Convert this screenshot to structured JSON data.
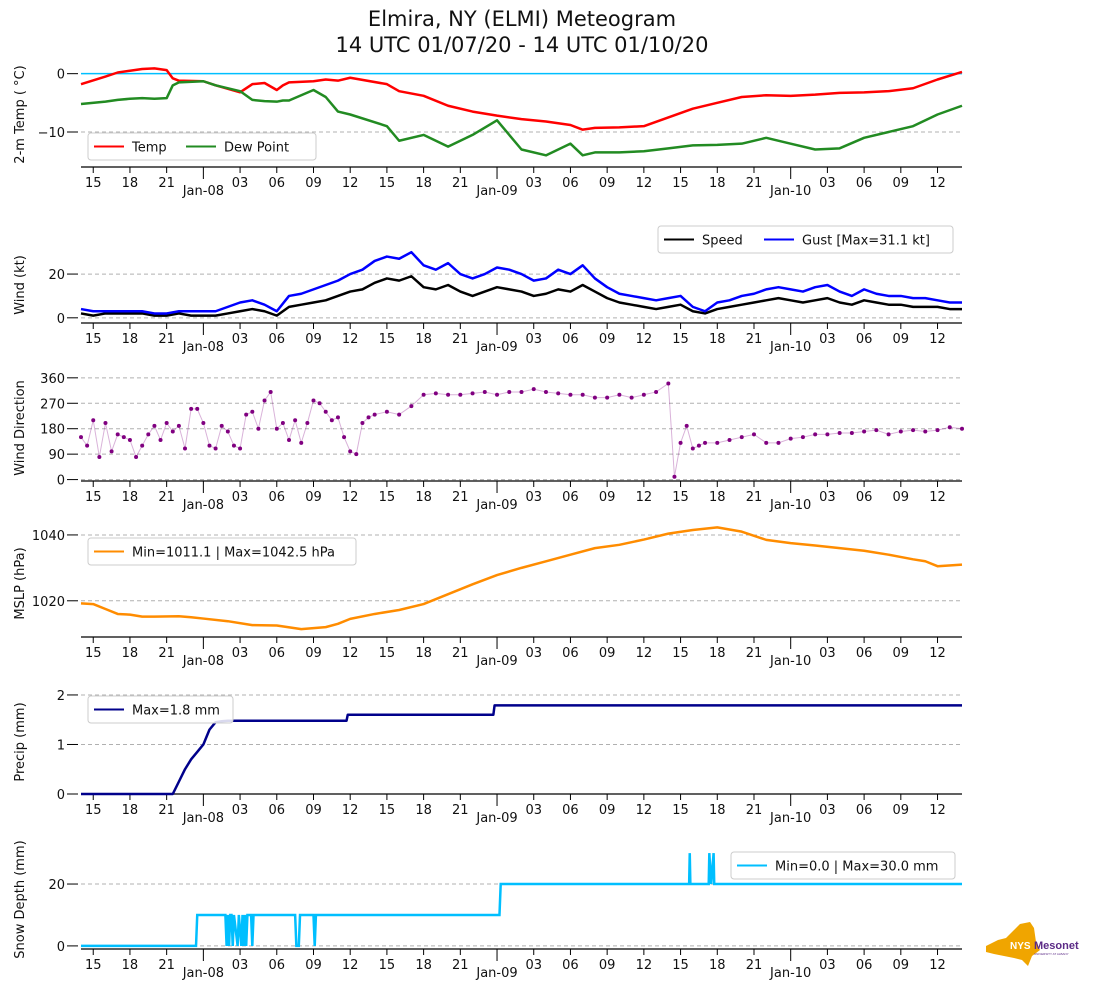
{
  "title": {
    "line1": "Elmira, NY (ELMI) Meteogram",
    "line2": "14 UTC 01/07/20 - 14 UTC 01/10/20"
  },
  "logo": {
    "text_a": "NYS",
    "text_b": "Mesonet",
    "text_c": "UNIVERSITY AT ALBANY",
    "color_state": "#f0a500",
    "color_text": "#5b2a86"
  },
  "chart_data": [
    {
      "id": "temp",
      "type": "line",
      "ylabel": "2-m Temp ($^\\circ$C)",
      "ylabel_display": "2-m Temp ( °C)",
      "xlabel": "",
      "x_hours_range": [
        0,
        72
      ],
      "ylim": [
        -16,
        2
      ],
      "yticks": [
        0,
        -10
      ],
      "ytick_labels": [
        "0",
        "−10"
      ],
      "grid_y": [
        -10
      ],
      "reference_line": {
        "y": 0,
        "color": "#00bfff"
      },
      "legend": {
        "placement": "lower-left",
        "ncol": 2,
        "entries": [
          "Temp",
          "Dew Point"
        ]
      },
      "x_hours": [
        0,
        2,
        3,
        4,
        5,
        6,
        7,
        7.5,
        8,
        10,
        11,
        13,
        14,
        15,
        16,
        16.5,
        17,
        19,
        20,
        21,
        22,
        25,
        26,
        28,
        30,
        32,
        34,
        36,
        38,
        40,
        41,
        42,
        44,
        46,
        48,
        50,
        52,
        54,
        56,
        58,
        60,
        62,
        64,
        66,
        68,
        70,
        72
      ],
      "series": [
        {
          "name": "Temp",
          "color": "#ff0000",
          "values": [
            -1.8,
            -0.5,
            0.2,
            0.5,
            0.8,
            0.9,
            0.6,
            -0.8,
            -1.2,
            -1.3,
            -2.0,
            -3.2,
            -1.8,
            -1.6,
            -2.8,
            -2.0,
            -1.5,
            -1.3,
            -1.0,
            -1.2,
            -0.7,
            -1.8,
            -3.0,
            -3.8,
            -5.5,
            -6.5,
            -7.2,
            -7.8,
            -8.2,
            -8.8,
            -9.6,
            -9.3,
            -9.2,
            -9.0,
            -7.5,
            -6.0,
            -5.0,
            -4.0,
            -3.7,
            -3.8,
            -3.6,
            -3.3,
            -3.2,
            -3.0,
            -2.5,
            -1.0,
            0.3
          ]
        },
        {
          "name": "Dew Point",
          "color": "#228b22",
          "values": [
            -5.2,
            -4.8,
            -4.5,
            -4.3,
            -4.2,
            -4.3,
            -4.2,
            -2.0,
            -1.5,
            -1.3,
            -2.0,
            -3.0,
            -4.5,
            -4.7,
            -4.8,
            -4.6,
            -4.6,
            -2.8,
            -4.0,
            -6.5,
            -7.0,
            -9.0,
            -11.5,
            -10.5,
            -12.5,
            -10.5,
            -8.0,
            -13.0,
            -14.0,
            -12.0,
            -14.0,
            -13.5,
            -13.5,
            -13.3,
            -12.8,
            -12.3,
            -12.2,
            -12.0,
            -11.0,
            -12.0,
            -13.0,
            -12.8,
            -11.0,
            -10.0,
            -9.0,
            -7.0,
            -5.5
          ]
        }
      ]
    },
    {
      "id": "wind",
      "type": "line",
      "ylabel": "Wind (kt)",
      "xlabel": "",
      "x_hours_range": [
        0,
        72
      ],
      "ylim": [
        -1,
        31
      ],
      "yticks": [
        0,
        20
      ],
      "ytick_labels": [
        "0",
        "20"
      ],
      "grid_y": [
        0,
        20
      ],
      "legend": {
        "placement": "upper-right",
        "ncol": 2,
        "entries": [
          "Speed",
          "Gust [Max=31.1 kt]"
        ]
      },
      "x_hours": [
        0,
        1,
        2,
        3,
        4,
        5,
        6,
        7,
        8,
        9,
        10,
        11,
        12,
        13,
        14,
        15,
        16,
        17,
        18,
        19,
        20,
        21,
        22,
        23,
        24,
        25,
        26,
        27,
        28,
        29,
        30,
        31,
        32,
        33,
        34,
        35,
        36,
        37,
        38,
        39,
        40,
        41,
        42,
        43,
        44,
        45,
        46,
        47,
        48,
        49,
        50,
        51,
        52,
        53,
        54,
        55,
        56,
        57,
        58,
        59,
        60,
        61,
        62,
        63,
        64,
        65,
        66,
        67,
        68,
        69,
        70,
        71,
        72
      ],
      "series": [
        {
          "name": "Speed",
          "color": "#000000",
          "values": [
            2,
            1,
            2,
            2,
            2,
            2,
            1,
            1,
            2,
            1,
            1,
            1,
            2,
            3,
            4,
            3,
            1,
            5,
            6,
            7,
            8,
            10,
            12,
            13,
            16,
            18,
            17,
            19,
            14,
            13,
            15,
            12,
            10,
            12,
            14,
            13,
            12,
            10,
            11,
            13,
            12,
            15,
            12,
            9,
            7,
            6,
            5,
            4,
            5,
            6,
            3,
            2,
            4,
            5,
            6,
            7,
            8,
            9,
            8,
            7,
            8,
            9,
            7,
            6,
            8,
            7,
            6,
            6,
            5,
            5,
            5,
            4,
            4
          ]
        },
        {
          "name": "Gust",
          "color": "#0000ff",
          "values": [
            4,
            3,
            3,
            3,
            3,
            3,
            2,
            2,
            3,
            3,
            3,
            3,
            5,
            7,
            8,
            6,
            3,
            10,
            11,
            13,
            15,
            17,
            20,
            22,
            26,
            28,
            27,
            30,
            24,
            22,
            25,
            20,
            18,
            20,
            23,
            22,
            20,
            17,
            18,
            22,
            20,
            24,
            18,
            14,
            11,
            10,
            9,
            8,
            9,
            10,
            5,
            3,
            7,
            8,
            10,
            11,
            13,
            14,
            13,
            12,
            14,
            15,
            12,
            10,
            13,
            11,
            10,
            10,
            9,
            9,
            8,
            7,
            7
          ]
        }
      ]
    },
    {
      "id": "wdir",
      "type": "scatter",
      "ylabel": "Wind Direction",
      "xlabel": "",
      "x_hours_range": [
        0,
        72
      ],
      "ylim": [
        -5,
        370
      ],
      "yticks": [
        0,
        90,
        180,
        270,
        360
      ],
      "ytick_labels": [
        "0",
        "90",
        "180",
        "270",
        "360"
      ],
      "grid_y": [
        0,
        90,
        180,
        270,
        360
      ],
      "color": "#800080",
      "x_hours": [
        0,
        0.5,
        1,
        1.5,
        2,
        2.5,
        3,
        3.5,
        4,
        4.5,
        5,
        5.5,
        6,
        6.5,
        7,
        7.5,
        8,
        8.5,
        9,
        9.5,
        10,
        10.5,
        11,
        11.5,
        12,
        12.5,
        13,
        13.5,
        14,
        14.5,
        15,
        15.5,
        16,
        16.5,
        17,
        17.5,
        18,
        18.5,
        19,
        19.5,
        20,
        20.5,
        21,
        21.5,
        22,
        22.5,
        23,
        23.5,
        24,
        25,
        26,
        27,
        28,
        29,
        30,
        31,
        32,
        33,
        34,
        35,
        36,
        37,
        38,
        39,
        40,
        41,
        42,
        43,
        44,
        45,
        46,
        47,
        48,
        48.5,
        49,
        49.5,
        50,
        50.5,
        51,
        52,
        53,
        54,
        55,
        56,
        57,
        58,
        59,
        60,
        61,
        62,
        63,
        64,
        65,
        66,
        67,
        68,
        69,
        70,
        71,
        72
      ],
      "values": [
        150,
        120,
        210,
        80,
        200,
        100,
        160,
        150,
        140,
        80,
        120,
        160,
        190,
        140,
        200,
        170,
        190,
        110,
        250,
        250,
        200,
        120,
        110,
        190,
        170,
        120,
        110,
        230,
        240,
        180,
        280,
        310,
        180,
        200,
        140,
        210,
        130,
        200,
        280,
        270,
        240,
        210,
        220,
        150,
        100,
        90,
        200,
        220,
        230,
        240,
        230,
        260,
        300,
        305,
        300,
        300,
        305,
        310,
        300,
        310,
        310,
        320,
        310,
        305,
        300,
        300,
        290,
        290,
        300,
        290,
        300,
        310,
        340,
        10,
        130,
        190,
        110,
        120,
        130,
        130,
        140,
        150,
        160,
        130,
        130,
        145,
        150,
        160,
        160,
        165,
        165,
        170,
        175,
        160,
        170,
        175,
        170,
        175,
        185,
        180,
        175,
        170,
        165
      ]
    },
    {
      "id": "mslp",
      "type": "line",
      "ylabel": "MSLP (hPa)",
      "xlabel": "",
      "x_hours_range": [
        0,
        72
      ],
      "ylim": [
        1009,
        1041.5
      ],
      "yticks": [
        1020,
        1040
      ],
      "ytick_labels": [
        "1020",
        "1040"
      ],
      "grid_y": [
        1020,
        1040
      ],
      "legend": {
        "placement": "upper-left",
        "ncol": 1,
        "entries": [
          "Min=1011.1 | Max=1042.5 hPa"
        ]
      },
      "x_hours": [
        0,
        1,
        2,
        3,
        4,
        5,
        6,
        8,
        9,
        10,
        12,
        14,
        16,
        18,
        20,
        21,
        22,
        24,
        26,
        28,
        30,
        32,
        34,
        36,
        38,
        40,
        42,
        44,
        46,
        48,
        50,
        52,
        54,
        56,
        58,
        60,
        62,
        64,
        66,
        68,
        69,
        70,
        72
      ],
      "series": [
        {
          "name": "MSLP",
          "color": "#ff8c00",
          "values": [
            1019.2,
            1019.0,
            1017.5,
            1016.0,
            1015.8,
            1015.2,
            1015.2,
            1015.3,
            1015.0,
            1014.6,
            1013.8,
            1012.6,
            1012.5,
            1011.4,
            1012.0,
            1013.0,
            1014.5,
            1016.0,
            1017.2,
            1019.0,
            1022.0,
            1025.0,
            1027.8,
            1030.0,
            1032.0,
            1034.0,
            1036.0,
            1037.0,
            1038.6,
            1040.4,
            1041.5,
            1042.3,
            1041.0,
            1038.5,
            1037.5,
            1036.8,
            1036.0,
            1035.2,
            1034.0,
            1032.6,
            1032.0,
            1030.5,
            1031.0
          ]
        }
      ]
    },
    {
      "id": "precip",
      "type": "line",
      "ylabel": "Precip (mm)",
      "xlabel": "",
      "x_hours_range": [
        0,
        72
      ],
      "ylim": [
        0,
        2.1
      ],
      "yticks": [
        0,
        1,
        2
      ],
      "ytick_labels": [
        "0",
        "1",
        "2"
      ],
      "grid_y": [
        1,
        2
      ],
      "legend": {
        "placement": "upper-left",
        "ncol": 1,
        "entries": [
          "Max=1.8 mm"
        ]
      },
      "x_hours": [
        0,
        7.5,
        8,
        8.5,
        9,
        9.5,
        10,
        10.5,
        11,
        11.5,
        12,
        21.7,
        21.8,
        33.7,
        33.8,
        72
      ],
      "series": [
        {
          "name": "Precip",
          "color": "#00008b",
          "values": [
            0,
            0,
            0.25,
            0.5,
            0.7,
            0.85,
            1.0,
            1.3,
            1.45,
            1.47,
            1.48,
            1.48,
            1.6,
            1.6,
            1.79,
            1.79
          ]
        }
      ]
    },
    {
      "id": "snow",
      "type": "line",
      "ylabel": "Snow Depth (mm)",
      "xlabel": "",
      "x_hours_range": [
        0,
        72
      ],
      "ylim": [
        -1,
        31
      ],
      "yticks": [
        0,
        20
      ],
      "ytick_labels": [
        "0",
        "20"
      ],
      "grid_y": [
        0,
        20
      ],
      "legend": {
        "placement": "upper-right",
        "ncol": 1,
        "entries": [
          "Min=0.0 | Max=30.0 mm"
        ]
      },
      "x_hours": [
        0,
        9.4,
        9.5,
        11.8,
        11.9,
        12.0,
        12.1,
        12.2,
        12.3,
        12.4,
        12.5,
        12.8,
        12.9,
        13.1,
        13.2,
        13.3,
        13.4,
        13.5,
        13.6,
        13.9,
        14.0,
        14.1,
        14.2,
        17.5,
        17.6,
        17.8,
        17.9,
        19.0,
        19.1,
        19.2,
        34.2,
        34.3,
        49.7,
        49.75,
        49.8,
        51.3,
        51.35,
        51.5,
        51.7,
        51.75,
        51.8,
        72
      ],
      "series": [
        {
          "name": "Snow Depth",
          "color": "#00bfff",
          "values": [
            0,
            0,
            10,
            10,
            0,
            10,
            0,
            10,
            10,
            0,
            10,
            0,
            10,
            0,
            10,
            0,
            10,
            0,
            10,
            10,
            0,
            10,
            10,
            10,
            0,
            0,
            10,
            10,
            0,
            10,
            10,
            20,
            20,
            30,
            20,
            20,
            30,
            20,
            30,
            20,
            20,
            20
          ]
        }
      ]
    }
  ],
  "x_axis": {
    "hour_ticks_labels": [
      "15",
      "18",
      "21",
      "03",
      "06",
      "09",
      "12",
      "15",
      "18",
      "21",
      "03",
      "06",
      "09",
      "12",
      "15",
      "18",
      "21",
      "03",
      "06",
      "09",
      "12"
    ],
    "hour_ticks_hours": [
      1,
      4,
      7,
      13,
      16,
      19,
      22,
      25,
      28,
      31,
      37,
      40,
      43,
      46,
      49,
      52,
      55,
      61,
      64,
      67,
      70
    ],
    "day_ticks_labels": [
      "Jan-08",
      "Jan-09",
      "Jan-10"
    ],
    "day_ticks_hours": [
      10,
      34,
      58
    ]
  }
}
